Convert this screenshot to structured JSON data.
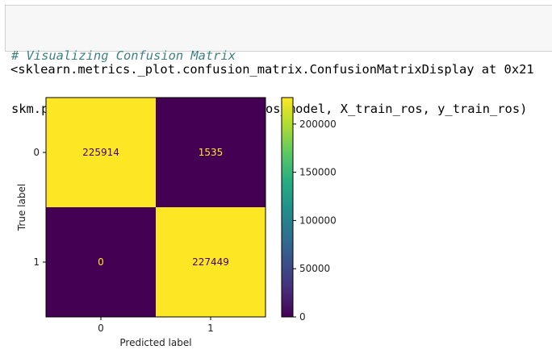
{
  "code_cell": {
    "comment": "# Visualizing Confusion Matrix",
    "code": "skm.plot_confusion_matrix(dt_bal_ros_model, X_train_ros, y_train_ros)"
  },
  "output": {
    "text": "<sklearn.metrics._plot.confusion_matrix.ConfusionMatrixDisplay at 0x21"
  },
  "chart_data": {
    "type": "heatmap",
    "title": "",
    "xlabel": "Predicted label",
    "ylabel": "True label",
    "x_tick_labels": [
      "0",
      "1"
    ],
    "y_tick_labels": [
      "0",
      "1"
    ],
    "matrix": [
      [
        225914,
        1535
      ],
      [
        0,
        227449
      ]
    ],
    "cell_labels": [
      [
        "225914",
        "1535"
      ],
      [
        "0",
        "227449"
      ]
    ],
    "colormap": "viridis",
    "colorbar": {
      "range": [
        0,
        227449
      ],
      "ticks": [
        0,
        50000,
        100000,
        150000,
        200000
      ],
      "tick_labels": [
        "0",
        "50000",
        "100000",
        "150000",
        "200000"
      ]
    },
    "colors": {
      "high": "#fde725",
      "low": "#440154",
      "text_on_high": "#440154",
      "text_on_low": "#fde725"
    }
  }
}
